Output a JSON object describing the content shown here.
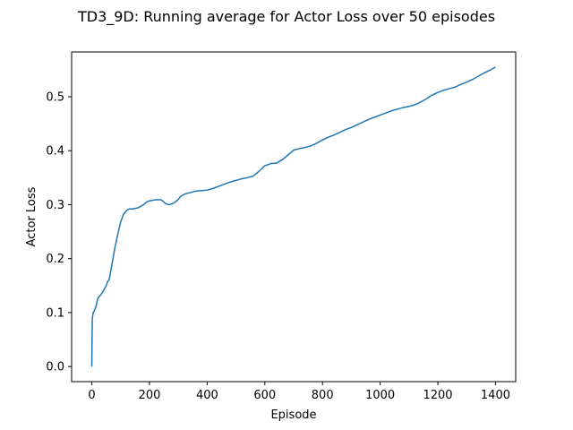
{
  "chart_data": {
    "type": "line",
    "title": "TD3_9D: Running average for Actor Loss over 50 episodes",
    "xlabel": "Episode",
    "ylabel": "Actor Loss",
    "xlim": [
      -70,
      1470
    ],
    "ylim": [
      -0.028,
      0.583
    ],
    "xticks": [
      0,
      200,
      400,
      600,
      800,
      1000,
      1200,
      1400
    ],
    "yticks": [
      0.0,
      0.1,
      0.2,
      0.3,
      0.4,
      0.5
    ],
    "grid": false,
    "series": [
      {
        "color": "#1f77b4",
        "x": [
          0,
          1,
          2,
          5,
          10,
          15,
          20,
          25,
          30,
          40,
          50,
          55,
          60,
          70,
          80,
          90,
          100,
          110,
          120,
          130,
          140,
          150,
          160,
          170,
          180,
          190,
          200,
          210,
          220,
          230,
          240,
          250,
          255,
          260,
          270,
          280,
          290,
          300,
          310,
          320,
          330,
          340,
          360,
          380,
          400,
          420,
          440,
          460,
          480,
          500,
          520,
          540,
          560,
          580,
          600,
          620,
          640,
          660,
          680,
          700,
          720,
          740,
          760,
          780,
          800,
          820,
          840,
          860,
          880,
          900,
          920,
          940,
          960,
          980,
          1000,
          1020,
          1040,
          1060,
          1080,
          1100,
          1120,
          1140,
          1160,
          1180,
          1200,
          1220,
          1240,
          1260,
          1280,
          1300,
          1320,
          1340,
          1360,
          1380,
          1400
        ],
        "y": [
          0.0,
          0.06,
          0.09,
          0.1,
          0.105,
          0.112,
          0.125,
          0.13,
          0.132,
          0.14,
          0.15,
          0.158,
          0.16,
          0.19,
          0.22,
          0.245,
          0.268,
          0.282,
          0.289,
          0.292,
          0.292,
          0.293,
          0.294,
          0.297,
          0.3,
          0.305,
          0.307,
          0.308,
          0.309,
          0.309,
          0.309,
          0.305,
          0.302,
          0.301,
          0.3,
          0.302,
          0.305,
          0.31,
          0.316,
          0.319,
          0.321,
          0.322,
          0.325,
          0.326,
          0.327,
          0.33,
          0.334,
          0.338,
          0.342,
          0.345,
          0.348,
          0.35,
          0.353,
          0.362,
          0.372,
          0.376,
          0.377,
          0.383,
          0.392,
          0.401,
          0.404,
          0.406,
          0.409,
          0.414,
          0.42,
          0.425,
          0.429,
          0.434,
          0.439,
          0.443,
          0.448,
          0.453,
          0.458,
          0.462,
          0.466,
          0.47,
          0.474,
          0.477,
          0.48,
          0.482,
          0.485,
          0.49,
          0.496,
          0.503,
          0.508,
          0.512,
          0.515,
          0.518,
          0.523,
          0.527,
          0.532,
          0.538,
          0.544,
          0.549,
          0.555
        ]
      }
    ]
  }
}
